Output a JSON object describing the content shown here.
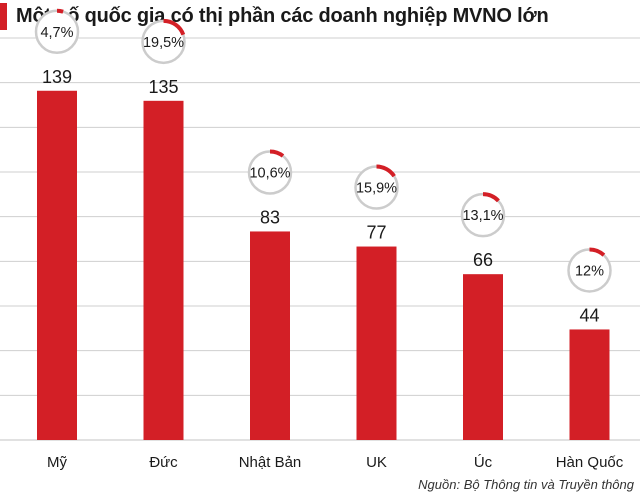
{
  "title": "Một số quốc gia có thị phần các doanh nghiệp MVNO lớn",
  "source": "Nguồn: Bộ Thông tin và Truyền thông",
  "colors": {
    "bar": "#d31f26",
    "accent": "#d31f26",
    "grid": "#cfcfcf",
    "ring": "#cccccc"
  },
  "chart_data": {
    "type": "bar",
    "title": "Một số quốc gia có thị phần các doanh nghiệp MVNO lớn",
    "categories": [
      "Mỹ",
      "Đức",
      "Nhật Bản",
      "UK",
      "Úc",
      "Hàn Quốc"
    ],
    "values": [
      139,
      135,
      83,
      77,
      66,
      44
    ],
    "value_labels": [
      "139",
      "135",
      "83",
      "77",
      "66",
      "44"
    ],
    "market_share_percent": [
      4.7,
      19.5,
      10.6,
      15.9,
      13.1,
      12
    ],
    "market_share_labels": [
      "4,7%",
      "19,5%",
      "10,6%",
      "15,9%",
      "13,1%",
      "12%"
    ],
    "xlabel": "",
    "ylabel": "",
    "ylim": [
      0,
      160
    ],
    "grid": true
  }
}
